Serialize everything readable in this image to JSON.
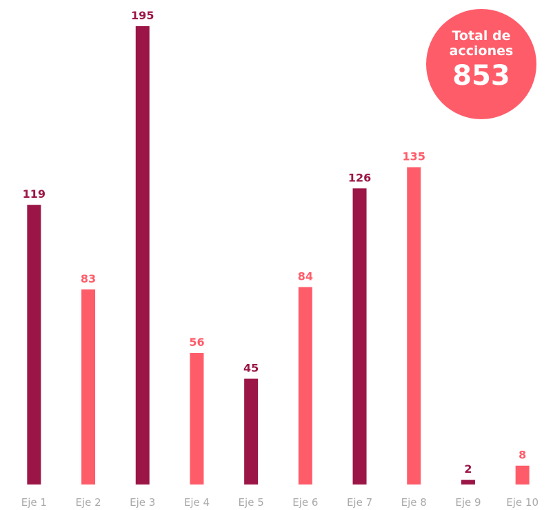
{
  "chart_data": {
    "type": "bar",
    "categories": [
      "Eje 1",
      "Eje 2",
      "Eje 3",
      "Eje 4",
      "Eje 5",
      "Eje 6",
      "Eje 7",
      "Eje 8",
      "Eje 9",
      "Eje 10"
    ],
    "values": [
      119,
      83,
      195,
      56,
      45,
      84,
      126,
      135,
      2,
      8
    ],
    "colors": [
      "#9b1646",
      "#ff5c6a",
      "#9b1646",
      "#ff5c6a",
      "#9b1646",
      "#ff5c6a",
      "#9b1646",
      "#ff5c6a",
      "#9b1646",
      "#ff5c6a"
    ],
    "ylim": [
      0,
      195
    ],
    "total_label": "Total de acciones",
    "total": 853,
    "total_color": "#ff5c6a"
  }
}
